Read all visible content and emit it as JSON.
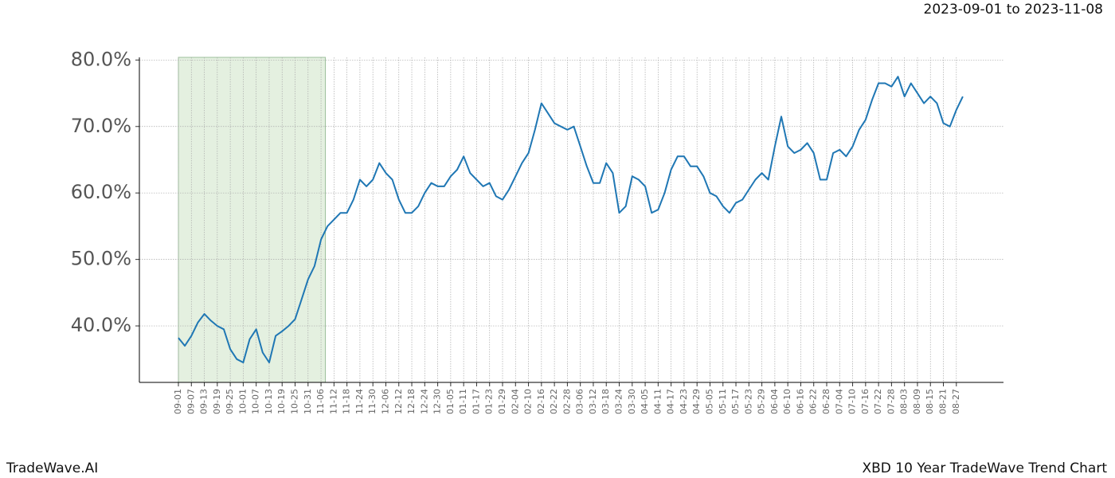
{
  "chart_data": {
    "type": "line",
    "subtitle": "2023-09-01 to 2023-11-08",
    "footer_left": "TradeWave.AI",
    "footer_right": "XBD 10 Year TradeWave Trend Chart",
    "color": "#1f77b4",
    "highlight_color": "#d9ead3",
    "highlight_range": [
      0,
      22.67
    ],
    "grid": true,
    "ylim": [
      31.5,
      80.4
    ],
    "yticks": [
      {
        "value": 40,
        "label": "40.0%"
      },
      {
        "value": 50,
        "label": "50.0%"
      },
      {
        "value": 60,
        "label": "60.0%"
      },
      {
        "value": 70,
        "label": "70.0%"
      },
      {
        "value": 80,
        "label": "80.0%"
      }
    ],
    "categories": [
      "09-01",
      null,
      "09-07",
      null,
      "09-13",
      null,
      "09-19",
      null,
      "09-25",
      null,
      "10-01",
      null,
      "10-07",
      null,
      "10-13",
      null,
      "10-19",
      null,
      "10-25",
      null,
      "10-31",
      null,
      "11-06",
      null,
      "11-12",
      null,
      "11-18",
      null,
      "11-24",
      null,
      "11-30",
      null,
      "12-06",
      null,
      "12-12",
      null,
      "12-18",
      null,
      "12-24",
      null,
      "12-30",
      null,
      "01-05",
      null,
      "01-11",
      null,
      "01-17",
      null,
      "01-23",
      null,
      "01-29",
      null,
      "02-04",
      null,
      "02-10",
      null,
      "02-16",
      null,
      "02-22",
      null,
      "02-28",
      null,
      "03-06",
      null,
      "03-12",
      null,
      "03-18",
      null,
      "03-24",
      null,
      "03-30",
      null,
      "04-05",
      null,
      "04-11",
      null,
      "04-17",
      null,
      "04-23",
      null,
      "04-29",
      null,
      "05-05",
      null,
      "05-11",
      null,
      "05-17",
      null,
      "05-23",
      null,
      "05-29",
      null,
      "06-04",
      null,
      "06-10",
      null,
      "06-16",
      null,
      "06-22",
      null,
      "06-28",
      null,
      "07-04",
      null,
      "07-10",
      null,
      "07-16",
      null,
      "07-22",
      null,
      "07-28",
      null,
      "08-03",
      null,
      "08-09",
      null,
      "08-15",
      null,
      "08-21",
      null,
      "08-27",
      null
    ],
    "values": [
      38.2,
      37.0,
      38.5,
      40.5,
      41.8,
      40.8,
      40.0,
      39.5,
      36.5,
      35.0,
      34.5,
      38.0,
      39.5,
      36.0,
      34.5,
      38.5,
      39.2,
      40.0,
      41.0,
      44.0,
      47.0,
      49.0,
      53.0,
      55.0,
      56.0,
      57.0,
      57.0,
      59.0,
      62.0,
      61.0,
      62.0,
      64.5,
      63.0,
      62.0,
      59.0,
      57.0,
      57.0,
      58.0,
      60.0,
      61.5,
      61.0,
      61.0,
      62.5,
      63.5,
      65.5,
      63.0,
      62.0,
      61.0,
      61.5,
      59.5,
      59.0,
      60.5,
      62.5,
      64.5,
      66.0,
      69.5,
      73.5,
      72.0,
      70.5,
      70.0,
      69.5,
      70.0,
      67.0,
      64.0,
      61.5,
      61.5,
      64.5,
      63.0,
      57.0,
      58.0,
      62.5,
      62.0,
      61.0,
      57.0,
      57.5,
      60.0,
      63.5,
      65.5,
      65.5,
      64.0,
      64.0,
      62.5,
      60.0,
      59.5,
      58.0,
      57.0,
      58.5,
      59.0,
      60.5,
      62.0,
      63.0,
      62.0,
      67.0,
      71.5,
      67.0,
      66.0,
      66.5,
      67.5,
      66.0,
      62.0,
      62.0,
      66.0,
      66.5,
      65.5,
      67.0,
      69.5,
      71.0,
      74.0,
      76.5,
      76.5,
      76.0,
      77.5,
      74.5,
      76.5,
      75.0,
      73.5,
      74.5,
      73.5,
      70.5,
      70.0,
      72.5,
      74.5
    ]
  }
}
